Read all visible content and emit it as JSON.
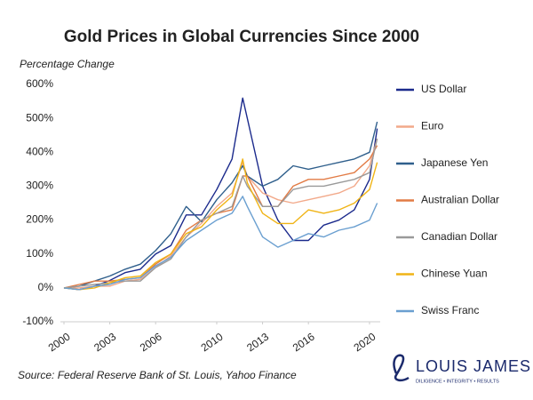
{
  "chart_data": {
    "type": "line",
    "title": "Gold Prices in Global Currencies Since 2000",
    "y_label": "Percentage Change",
    "source": "Source: Federal Reserve Bank of St. Louis, Yahoo Finance",
    "logo": {
      "name": "LOUIS JAMES",
      "tagline": "DILIGENCE • INTEGRITY • RESULTS"
    },
    "legend_position": "right",
    "grid": false,
    "x": [
      2000,
      2001,
      2002,
      2003,
      2004,
      2005,
      2006,
      2007,
      2008,
      2009,
      2010,
      2011,
      2011.7,
      2012,
      2013,
      2014,
      2015,
      2016,
      2017,
      2018,
      2019,
      2020,
      2020.5
    ],
    "xlim": [
      2000,
      2020.7
    ],
    "xticks": [
      2000,
      2003,
      2006,
      2010,
      2013,
      2016,
      2020
    ],
    "ylim": [
      -100,
      600
    ],
    "yticks": [
      {
        "value": -100,
        "label": "-100%"
      },
      {
        "value": 0,
        "label": "0%"
      },
      {
        "value": 100,
        "label": "100%"
      },
      {
        "value": 200,
        "label": "200%"
      },
      {
        "value": 300,
        "label": "300%"
      },
      {
        "value": 400,
        "label": "400%"
      },
      {
        "value": 500,
        "label": "500%"
      },
      {
        "value": 600,
        "label": "600%"
      }
    ],
    "series": [
      {
        "name": "US Dollar",
        "color": "#1b2a8c",
        "values": [
          0,
          -5,
          5,
          22,
          45,
          55,
          100,
          125,
          215,
          215,
          290,
          380,
          560,
          500,
          300,
          200,
          140,
          140,
          185,
          200,
          230,
          320,
          470
        ]
      },
      {
        "name": "Euro",
        "color": "#f2a98a",
        "values": [
          0,
          0,
          5,
          5,
          20,
          25,
          60,
          95,
          150,
          190,
          240,
          280,
          370,
          330,
          280,
          260,
          250,
          260,
          270,
          280,
          300,
          360,
          440
        ]
      },
      {
        "name": "Japanese Yen",
        "color": "#2f5f8c",
        "values": [
          0,
          5,
          20,
          35,
          55,
          70,
          110,
          160,
          240,
          195,
          260,
          310,
          360,
          330,
          300,
          320,
          360,
          350,
          360,
          370,
          380,
          400,
          490
        ]
      },
      {
        "name": "Australian Dollar",
        "color": "#e27b45",
        "values": [
          0,
          10,
          20,
          20,
          25,
          30,
          70,
          100,
          170,
          200,
          220,
          230,
          330,
          330,
          240,
          240,
          300,
          320,
          320,
          330,
          340,
          380,
          420
        ]
      },
      {
        "name": "Canadian Dollar",
        "color": "#9a9a9a",
        "values": [
          0,
          5,
          10,
          15,
          20,
          20,
          60,
          85,
          150,
          200,
          220,
          240,
          330,
          300,
          240,
          240,
          290,
          300,
          300,
          310,
          320,
          340,
          440
        ]
      },
      {
        "name": "Chinese Yuan",
        "color": "#f0b416",
        "values": [
          0,
          -5,
          0,
          15,
          30,
          35,
          75,
          100,
          160,
          180,
          230,
          270,
          380,
          310,
          220,
          190,
          190,
          230,
          220,
          230,
          250,
          290,
          370
        ]
      },
      {
        "name": "Swiss Franc",
        "color": "#6a9fd0",
        "values": [
          0,
          -5,
          5,
          10,
          25,
          30,
          65,
          90,
          140,
          170,
          200,
          220,
          270,
          240,
          150,
          120,
          140,
          160,
          150,
          170,
          180,
          200,
          250
        ]
      }
    ]
  }
}
